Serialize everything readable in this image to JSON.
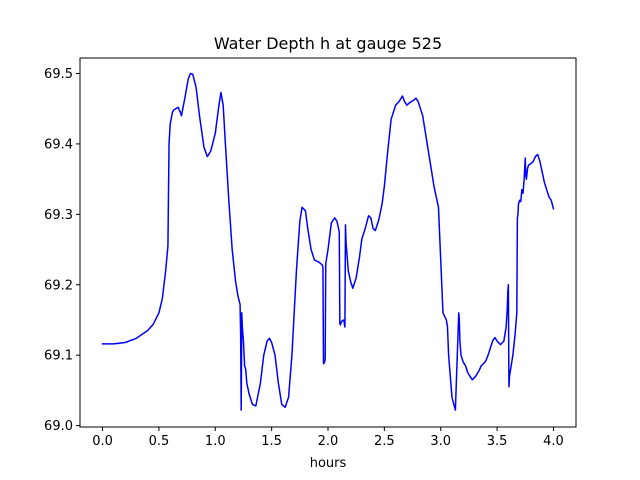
{
  "chart_data": {
    "type": "line",
    "title": "Water Depth h at gauge 525",
    "xlabel": "hours",
    "ylabel": "",
    "xlim": [
      -0.2,
      4.2
    ],
    "ylim": [
      68.998,
      69.522
    ],
    "xticks": [
      0.0,
      0.5,
      1.0,
      1.5,
      2.0,
      2.5,
      3.0,
      3.5,
      4.0
    ],
    "xtick_labels": [
      "0.0",
      "0.5",
      "1.0",
      "1.5",
      "2.0",
      "2.5",
      "3.0",
      "3.5",
      "4.0"
    ],
    "yticks": [
      69.0,
      69.1,
      69.2,
      69.3,
      69.4,
      69.5
    ],
    "ytick_labels": [
      "69.0",
      "69.1",
      "69.2",
      "69.3",
      "69.4",
      "69.5"
    ],
    "grid": false,
    "series": [
      {
        "color": "#0000ff",
        "x": [
          0.0,
          0.1,
          0.2,
          0.3,
          0.4,
          0.45,
          0.5,
          0.53,
          0.56,
          0.58,
          0.585,
          0.59,
          0.6,
          0.62,
          0.63,
          0.65,
          0.67,
          0.69,
          0.7,
          0.73,
          0.76,
          0.78,
          0.8,
          0.83,
          0.86,
          0.9,
          0.93,
          0.96,
          1.0,
          1.03,
          1.05,
          1.07,
          1.09,
          1.12,
          1.15,
          1.18,
          1.2,
          1.22,
          1.225,
          1.23,
          1.235,
          1.24,
          1.25,
          1.26,
          1.27,
          1.28,
          1.3,
          1.33,
          1.36,
          1.4,
          1.43,
          1.46,
          1.48,
          1.5,
          1.53,
          1.56,
          1.59,
          1.62,
          1.65,
          1.68,
          1.7,
          1.72,
          1.75,
          1.77,
          1.8,
          1.82,
          1.85,
          1.88,
          1.92,
          1.95,
          1.955,
          1.96,
          1.97,
          1.975,
          1.98,
          2.0,
          2.03,
          2.06,
          2.08,
          2.1,
          2.105,
          2.11,
          2.12,
          2.14,
          2.15,
          2.155,
          2.16,
          2.165,
          2.17,
          2.18,
          2.2,
          2.22,
          2.25,
          2.28,
          2.3,
          2.33,
          2.36,
          2.38,
          2.4,
          2.42,
          2.45,
          2.48,
          2.5,
          2.53,
          2.56,
          2.6,
          2.63,
          2.66,
          2.68,
          2.7,
          2.72,
          2.74,
          2.76,
          2.78,
          2.8,
          2.82,
          2.84,
          2.86,
          2.9,
          2.94,
          2.98,
          3.02,
          3.05,
          3.06,
          3.065,
          3.07,
          3.08,
          3.1,
          3.13,
          3.16,
          3.165,
          3.17,
          3.18,
          3.2,
          3.22,
          3.24,
          3.26,
          3.28,
          3.31,
          3.34,
          3.36,
          3.38,
          3.4,
          3.42,
          3.44,
          3.46,
          3.48,
          3.5,
          3.53,
          3.56,
          3.58,
          3.59,
          3.595,
          3.6,
          3.605,
          3.61,
          3.62,
          3.64,
          3.66,
          3.675,
          3.68,
          3.685,
          3.69,
          3.7,
          3.71,
          3.72,
          3.73,
          3.74,
          3.75,
          3.755,
          3.76,
          3.77,
          3.78,
          3.8,
          3.82,
          3.84,
          3.86,
          3.88,
          3.9,
          3.92,
          3.94,
          3.96,
          3.98,
          4.0
        ],
        "y": [
          69.116,
          69.116,
          69.118,
          69.124,
          69.135,
          69.144,
          69.16,
          69.18,
          69.22,
          69.255,
          69.33,
          69.4,
          69.428,
          69.445,
          69.448,
          69.45,
          69.452,
          69.445,
          69.44,
          69.465,
          69.492,
          69.5,
          69.499,
          69.48,
          69.44,
          69.395,
          69.382,
          69.39,
          69.415,
          69.452,
          69.473,
          69.455,
          69.4,
          69.32,
          69.25,
          69.205,
          69.185,
          69.172,
          69.13,
          69.022,
          69.16,
          69.14,
          69.12,
          69.085,
          69.08,
          69.06,
          69.045,
          69.03,
          69.028,
          69.06,
          69.1,
          69.12,
          69.124,
          69.118,
          69.1,
          69.06,
          69.03,
          69.026,
          69.04,
          69.1,
          69.16,
          69.22,
          69.29,
          69.31,
          69.305,
          69.28,
          69.25,
          69.235,
          69.232,
          69.228,
          69.225,
          69.088,
          69.09,
          69.095,
          69.23,
          69.25,
          69.288,
          69.295,
          69.29,
          69.275,
          69.145,
          69.143,
          69.148,
          69.15,
          69.14,
          69.285,
          69.26,
          69.25,
          69.24,
          69.22,
          69.205,
          69.195,
          69.21,
          69.24,
          69.265,
          69.28,
          69.298,
          69.295,
          69.28,
          69.277,
          69.292,
          69.315,
          69.34,
          69.39,
          69.435,
          69.455,
          69.46,
          69.468,
          69.46,
          69.455,
          69.458,
          69.46,
          69.462,
          69.465,
          69.46,
          69.45,
          69.44,
          69.42,
          69.38,
          69.34,
          69.31,
          69.16,
          69.15,
          69.14,
          69.12,
          69.1,
          69.08,
          69.04,
          69.022,
          69.16,
          69.15,
          69.12,
          69.1,
          69.09,
          69.085,
          69.075,
          69.07,
          69.065,
          69.07,
          69.078,
          69.085,
          69.088,
          69.092,
          69.1,
          69.11,
          69.12,
          69.125,
          69.12,
          69.115,
          69.12,
          69.14,
          69.165,
          69.19,
          69.2,
          69.055,
          69.07,
          69.08,
          69.1,
          69.13,
          69.16,
          69.295,
          69.3,
          69.315,
          69.32,
          69.318,
          69.335,
          69.33,
          69.35,
          69.38,
          69.355,
          69.35,
          69.365,
          69.37,
          69.372,
          69.375,
          69.382,
          69.385,
          69.375,
          69.36,
          69.345,
          69.335,
          69.325,
          69.32,
          69.308
        ]
      }
    ]
  }
}
